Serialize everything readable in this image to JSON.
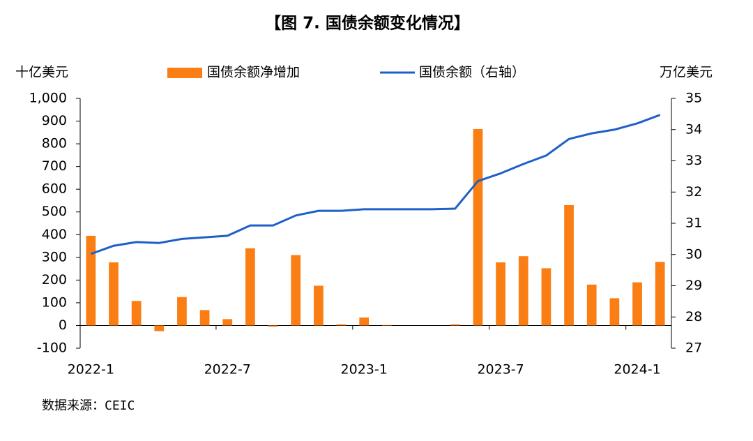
{
  "chart_data": {
    "type": "bar",
    "title": "【图 7. 国债余额变化情况】",
    "y_label": "十亿美元",
    "y2_label": "万亿美元",
    "source": "数据来源：CEIC",
    "categories": [
      "2022-1",
      null,
      null,
      null,
      null,
      null,
      "2022-7",
      null,
      null,
      null,
      null,
      null,
      "2023-1",
      null,
      null,
      null,
      null,
      null,
      "2023-7",
      null,
      null,
      null,
      null,
      null,
      "2024-1",
      null
    ],
    "series": [
      {
        "name": "国债余额净增加",
        "color": "#fa7e14",
        "values": [
          395,
          278,
          108,
          -25,
          125,
          68,
          28,
          340,
          -5,
          310,
          175,
          5,
          35,
          2,
          0,
          0,
          5,
          865,
          278,
          305,
          252,
          530,
          180,
          120,
          190,
          280
        ]
      },
      {
        "name": "国债余额（右轴）",
        "color": "#1f5fc8",
        "type": "line",
        "axis": "y2",
        "values": [
          30.02,
          30.28,
          30.4,
          30.37,
          30.5,
          30.55,
          30.6,
          30.93,
          30.93,
          31.25,
          31.4,
          31.4,
          31.45,
          31.45,
          31.45,
          31.45,
          31.47,
          32.35,
          32.6,
          32.9,
          33.17,
          33.7,
          33.88,
          34.0,
          34.2,
          34.47
        ]
      }
    ],
    "ylim": [
      -100,
      1000
    ],
    "yticks": [
      -100,
      0,
      100,
      200,
      300,
      400,
      500,
      600,
      700,
      800,
      900,
      {
        "value": 1000,
        "label": "1,000"
      }
    ],
    "y2lim": [
      27,
      35
    ],
    "y2ticks": [
      27,
      28,
      29,
      30,
      31,
      32,
      33,
      34,
      35
    ]
  }
}
